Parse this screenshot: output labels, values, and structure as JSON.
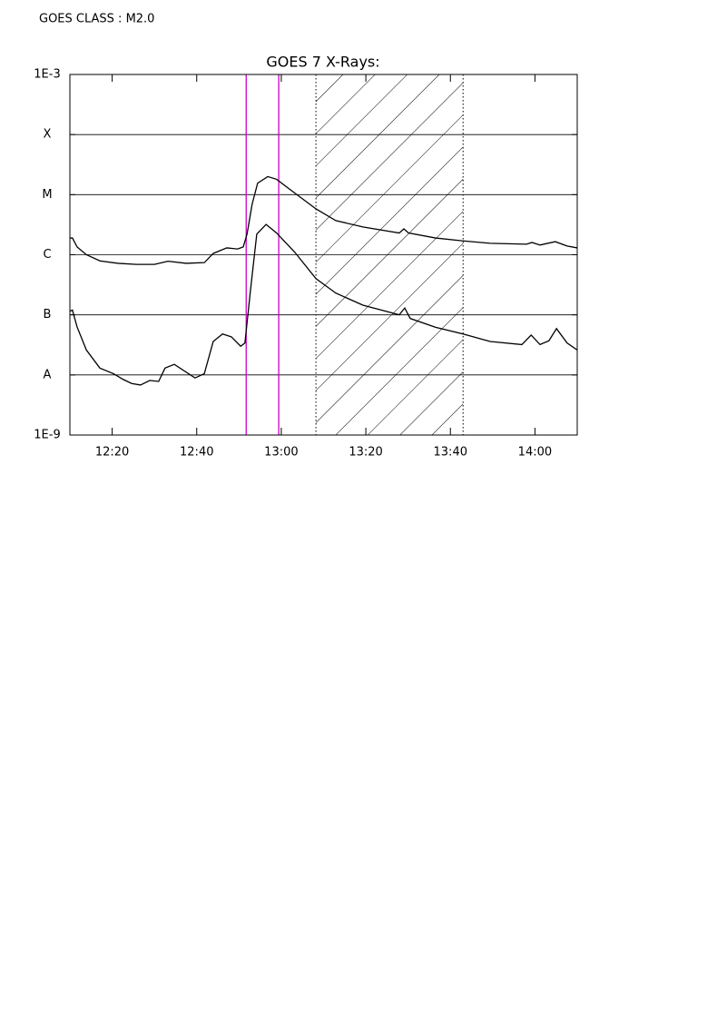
{
  "chart_data": {
    "type": "line",
    "annotation": "GOES CLASS : M2.0",
    "title": "GOES 7 X-Rays:",
    "ylog": true,
    "grid": true,
    "xlim": [
      730,
      850
    ],
    "ylim": [
      1e-09,
      0.001
    ],
    "xticks": [
      {
        "value": 740,
        "label": "12:20"
      },
      {
        "value": 760,
        "label": "12:40"
      },
      {
        "value": 780,
        "label": "13:00"
      },
      {
        "value": 800,
        "label": "13:20"
      },
      {
        "value": 820,
        "label": "13:40"
      },
      {
        "value": 840,
        "label": "14:00"
      }
    ],
    "yticks": [
      {
        "value": 1e-09,
        "label": "1E-9"
      },
      {
        "value": 1e-08,
        "label": "A"
      },
      {
        "value": 1e-07,
        "label": "B"
      },
      {
        "value": 1e-06,
        "label": "C"
      },
      {
        "value": 1e-05,
        "label": "M"
      },
      {
        "value": 0.0001,
        "label": "X"
      },
      {
        "value": 0.001,
        "label": "1E-3"
      }
    ],
    "markers": [
      771.7,
      779.4
    ],
    "marker_color": "#cc00cc",
    "hatched_span": [
      788.2,
      823.0
    ],
    "series": [
      {
        "color": "#000000",
        "x": [
          730.0,
          730.6,
          731.7,
          733.9,
          737.1,
          741.4,
          745.7,
          750.0,
          753.2,
          757.5,
          761.8,
          763.9,
          767.1,
          769.7,
          771.0,
          771.9,
          773.1,
          774.4,
          776.8,
          778.9,
          782.2,
          788.2,
          792.9,
          799.3,
          807.9,
          809.0,
          810.1,
          816.5,
          823.0,
          829.4,
          838.0,
          839.3,
          841.2,
          844.8,
          847.6,
          850.0
        ],
        "values": [
          1.9e-06,
          1.9e-06,
          1.35e-06,
          1e-06,
          7.9e-07,
          7.2e-07,
          6.9e-07,
          6.9e-07,
          7.8e-07,
          7.2e-07,
          7.4e-07,
          1.05e-06,
          1.3e-06,
          1.25e-06,
          1.35e-06,
          2.2e-06,
          6.9e-06,
          1.55e-05,
          2e-05,
          1.8e-05,
          1.2e-05,
          5.8e-06,
          3.7e-06,
          2.9e-06,
          2.3e-06,
          2.7e-06,
          2.3e-06,
          1.9e-06,
          1.7e-06,
          1.55e-06,
          1.5e-06,
          1.6e-06,
          1.45e-06,
          1.65e-06,
          1.4e-06,
          1.3e-06
        ]
      },
      {
        "color": "#000000",
        "x": [
          730.0,
          730.6,
          731.7,
          733.9,
          737.1,
          740.3,
          742.5,
          744.6,
          746.7,
          748.9,
          751.0,
          752.5,
          754.7,
          759.6,
          761.8,
          763.9,
          766.1,
          768.2,
          770.4,
          771.4,
          772.7,
          774.2,
          776.4,
          778.9,
          783.2,
          788.2,
          792.9,
          799.3,
          807.9,
          809.2,
          810.5,
          816.5,
          823.0,
          829.4,
          836.9,
          839.1,
          841.2,
          843.3,
          845.1,
          847.6,
          850.0
        ],
        "values": [
          1.15e-07,
          1.2e-07,
          6.3e-08,
          2.6e-08,
          1.3e-08,
          1.05e-08,
          8.5e-09,
          7.2e-09,
          6.8e-09,
          8.1e-09,
          7.8e-09,
          1.3e-08,
          1.5e-08,
          8.9e-09,
          1.05e-08,
          3.6e-08,
          4.8e-08,
          4.3e-08,
          3e-08,
          3.4e-08,
          2.5e-07,
          2.2e-06,
          3.2e-06,
          2.3e-06,
          1.1e-06,
          4e-07,
          2.3e-07,
          1.45e-07,
          1e-07,
          1.3e-07,
          8.7e-08,
          6.2e-08,
          4.8e-08,
          3.6e-08,
          3.2e-08,
          4.6e-08,
          3.2e-08,
          3.7e-08,
          5.9e-08,
          3.4e-08,
          2.6e-08
        ]
      }
    ]
  }
}
